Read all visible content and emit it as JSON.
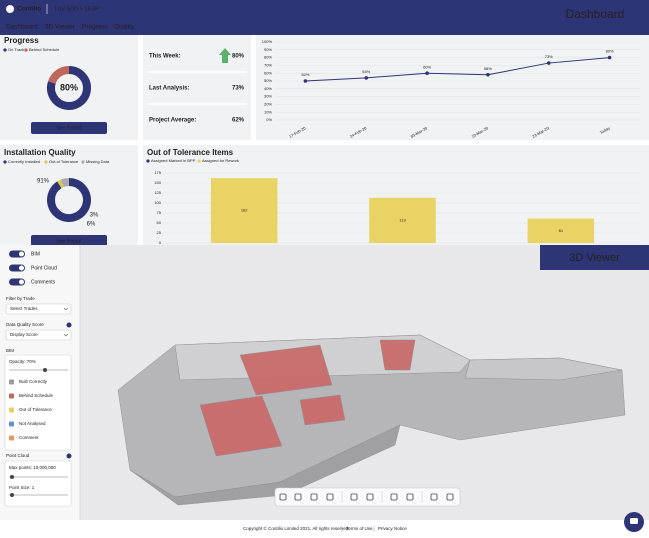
{
  "header": {
    "brand": "Contilio",
    "project": "TÜV SÜD > 15-BP",
    "page_title": "Dashboard"
  },
  "nav": [
    "Dashboard",
    "3D Viewer",
    "Progress",
    "Quality"
  ],
  "progress": {
    "title": "Progress",
    "legend": [
      {
        "name": "On Track",
        "color": "#2e3576"
      },
      {
        "name": "Behind Schedule",
        "color": "#c0675b"
      }
    ],
    "values": [
      80,
      20
    ],
    "center_label": "80%",
    "button": "See Report"
  },
  "stats": [
    {
      "label": "This Week:",
      "value": "80%"
    },
    {
      "label": "Last Analysis:",
      "value": "73%"
    },
    {
      "label": "Project Average:",
      "value": "62%"
    }
  ],
  "progress_chart": {
    "type": "line",
    "categories": [
      "17-Feb-20",
      "24-Feb-20",
      "03-Mar-20",
      "10-Mar-20",
      "23-Mar-20",
      "Today"
    ],
    "values": [
      50,
      54,
      60,
      58,
      73,
      80
    ],
    "value_labels": [
      "50%",
      "54%",
      "60%",
      "58%",
      "73%",
      "80%"
    ],
    "color": "#2e3576",
    "ylim": [
      0,
      100
    ],
    "grid": true,
    "yticks": [
      {
        "value": 0,
        "label": "0%"
      },
      {
        "value": 10,
        "label": "10%"
      },
      {
        "value": 20,
        "label": "20%"
      },
      {
        "value": 30,
        "label": "30%"
      },
      {
        "value": 40,
        "label": "40%"
      },
      {
        "value": 50,
        "label": "50%"
      },
      {
        "value": 60,
        "label": "60%"
      },
      {
        "value": 70,
        "label": "70%"
      },
      {
        "value": 80,
        "label": "80%"
      },
      {
        "value": 90,
        "label": "90%"
      },
      {
        "value": 100,
        "label": "100%"
      }
    ]
  },
  "quality": {
    "title": "Installation Quality",
    "legend": [
      {
        "name": "Correctly Installed",
        "color": "#2e3576"
      },
      {
        "name": "Out of Tolerance",
        "color": "#e0c84f"
      },
      {
        "name": "Missing Data",
        "color": "#a9abb0"
      }
    ],
    "values": [
      91,
      3,
      6
    ],
    "value_labels": [
      "91%",
      "3%",
      "6%"
    ],
    "button": "See Report"
  },
  "tolerance": {
    "type": "bar",
    "title": "Out of Tolerance Items",
    "legend": [
      {
        "name": "Assigned Marked in BPP",
        "color": "#2e3576"
      },
      {
        "name": "Assigned for Rework",
        "color": "#e8d364"
      }
    ],
    "values": [
      162,
      113,
      61
    ],
    "color": "#e8d364",
    "ylim": [
      0,
      175
    ],
    "yticks": [
      0,
      25,
      50,
      75,
      100,
      125,
      150,
      175
    ],
    "grid": true
  },
  "viewer": {
    "banner": "3D Viewer",
    "toggles": [
      "BIM",
      "Point Cloud",
      "Comments"
    ],
    "filter_label": "Filter by Trade",
    "filter_value": "Select Trades",
    "score_label": "Data Quality Score",
    "score_value": "Display Score",
    "bim_label": "BIM",
    "opacity_label": "Opacity: 70%",
    "bim_legend": [
      {
        "name": "Built Correctly",
        "color": "#9a9a9a"
      },
      {
        "name": "Behind Schedule",
        "color": "#c0675b"
      },
      {
        "name": "Out of Tolerance",
        "color": "#e6cf5a"
      },
      {
        "name": "Not Analysed",
        "color": "#6a8fd0"
      },
      {
        "name": "Comment",
        "color": "#e59a5a"
      }
    ],
    "pc_label": "Point Cloud",
    "max_points": "Max points: 10,000,000",
    "point_size": "Point Size: 1"
  },
  "footer": {
    "copyright": "Copyright © Contilio Limited 2021. All rights reserved.",
    "terms": "Terms of Use",
    "privacy": "Privacy Notice"
  }
}
